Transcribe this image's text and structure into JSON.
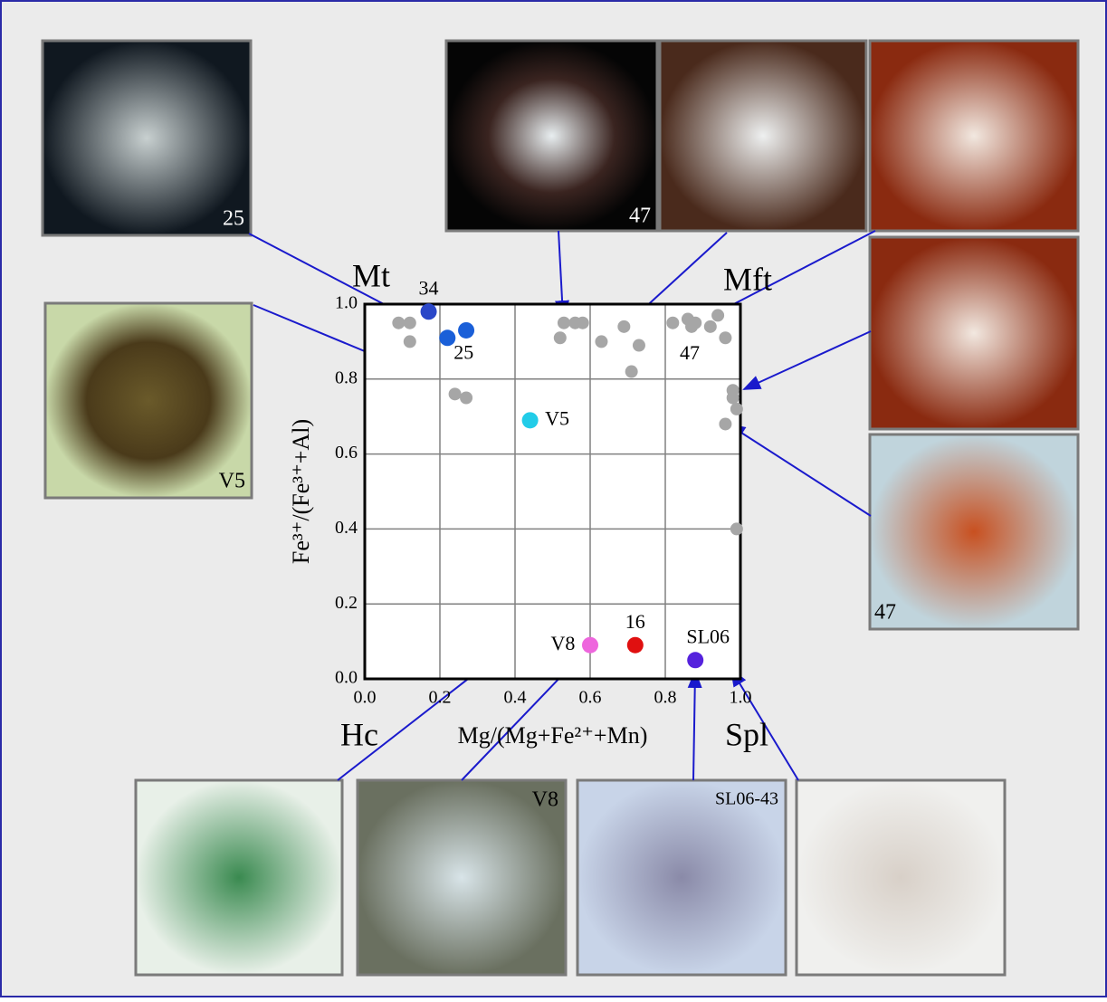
{
  "chart_data": {
    "type": "scatter",
    "xlabel": "Mg/(Mg+Fe²⁺+Mn)",
    "ylabel": "Fe³⁺/(Fe³⁺+Al)",
    "xlim": [
      0,
      1
    ],
    "ylim": [
      0,
      1
    ],
    "xticks": [
      {
        "value": 0,
        "label": "0.0"
      },
      {
        "value": 0.2,
        "label": "0.2"
      },
      {
        "value": 0.4,
        "label": "0.4"
      },
      {
        "value": 0.6,
        "label": "0.6"
      },
      {
        "value": 0.8,
        "label": "0.8"
      },
      {
        "value": 1,
        "label": "1.0"
      }
    ],
    "yticks": [
      {
        "value": 0,
        "label": "0.0"
      },
      {
        "value": 0.2,
        "label": "0.2"
      },
      {
        "value": 0.4,
        "label": "0.4"
      },
      {
        "value": 0.6,
        "label": "0.6"
      },
      {
        "value": 0.8,
        "label": "0.8"
      },
      {
        "value": 1,
        "label": "1.0"
      }
    ],
    "grid": true,
    "corner_labels": [
      "Mt",
      "Mft",
      "Hc",
      "Spl"
    ],
    "series": [
      {
        "color": "#a6a6a6",
        "x": [
          0.09,
          0.12,
          0.12,
          0.24,
          0.27,
          0.53,
          0.52,
          0.56,
          0.58,
          0.63,
          0.69,
          0.73,
          0.71,
          0.82,
          0.86,
          0.87,
          0.88,
          0.92,
          0.94,
          0.96,
          0.98,
          0.98,
          0.99,
          0.96,
          0.99
        ],
        "values": [
          0.95,
          0.95,
          0.9,
          0.76,
          0.75,
          0.95,
          0.91,
          0.95,
          0.95,
          0.9,
          0.94,
          0.89,
          0.82,
          0.95,
          0.96,
          0.94,
          0.95,
          0.94,
          0.97,
          0.91,
          0.77,
          0.75,
          0.72,
          0.68,
          0.4
        ]
      },
      {
        "color": "#2a47c8",
        "x": [
          0.17
        ],
        "values": [
          0.98
        ],
        "labels": [
          "34"
        ]
      },
      {
        "color": "#1a5fd8",
        "x": [
          0.22,
          0.27
        ],
        "values": [
          0.91,
          0.93
        ],
        "labels": [
          "25",
          null
        ]
      },
      {
        "color": "#22cce8",
        "x": [
          0.44
        ],
        "values": [
          0.69
        ],
        "labels": [
          "V5"
        ]
      },
      {
        "color": "#ee66dd",
        "x": [
          0.6
        ],
        "values": [
          0.09
        ],
        "labels": [
          "V8"
        ]
      },
      {
        "color": "#e01010",
        "x": [
          0.72
        ],
        "values": [
          0.09
        ],
        "labels": [
          "16"
        ]
      },
      {
        "color": "#5522dd",
        "x": [
          0.88
        ],
        "values": [
          0.05
        ],
        "labels": [
          "SL06"
        ]
      }
    ],
    "point_label_47": "47",
    "photo_labels": [
      "25",
      "47",
      "V5",
      "47",
      "V8",
      "SL06-43"
    ]
  }
}
